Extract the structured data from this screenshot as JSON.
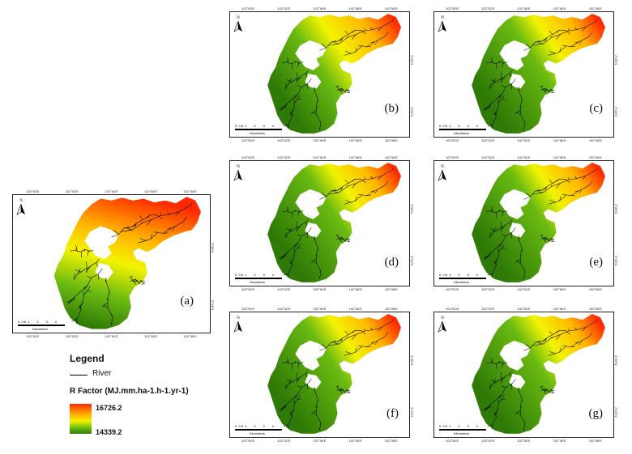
{
  "panels": [
    {
      "id": "a",
      "label": "(a)"
    },
    {
      "id": "b",
      "label": "(b)"
    },
    {
      "id": "c",
      "label": "(c)"
    },
    {
      "id": "d",
      "label": "(d)"
    },
    {
      "id": "e",
      "label": "(e)"
    },
    {
      "id": "f",
      "label": "(f)"
    },
    {
      "id": "g",
      "label": "(g)"
    }
  ],
  "graticule": {
    "top_ticks": [
      "102°50'E",
      "102°52'E",
      "102°54'E",
      "102°56'E",
      "102°58'E"
    ],
    "right_ticks": [
      "3°26'N",
      "3°24'N"
    ]
  },
  "north_label": "N",
  "scale_bar": {
    "ticks": "0  0.5  1        2        3        4",
    "unit": "Kilometers"
  },
  "legend": {
    "title": "Legend",
    "river_label": "River",
    "rfactor_title": "R Factor (MJ.mm.ha-1.h-1.yr-1)",
    "max_value": "16726.2",
    "min_value": "14339.2"
  },
  "colors": {
    "high": "#ff2a00",
    "mid_high": "#ffb800",
    "mid": "#f3f300",
    "mid_low": "#6bbb12",
    "low": "#2f7a06",
    "river": "#000000"
  }
}
